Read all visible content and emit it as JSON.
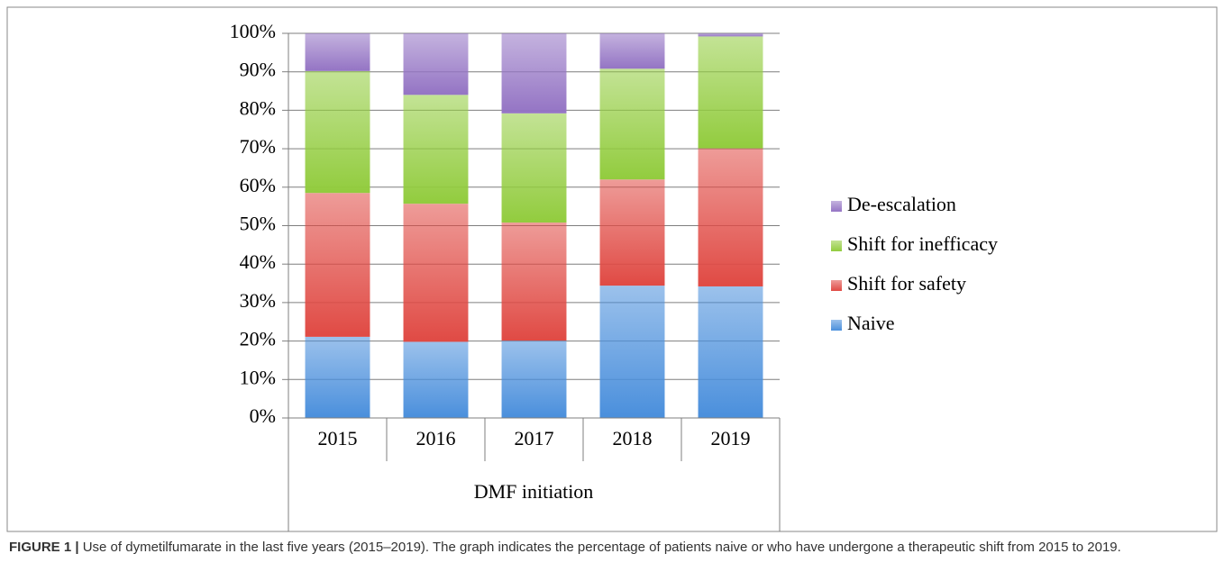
{
  "chart_data": {
    "type": "stacked_bar",
    "xlabel": "DMF initiation",
    "categories": [
      "2015",
      "2016",
      "2017",
      "2018",
      "2019"
    ],
    "series": [
      {
        "name": "Naive",
        "color": "#4a8fdc",
        "values": [
          21.1,
          19.8,
          20.1,
          34.4,
          34.2
        ]
      },
      {
        "name": "Shift for safety",
        "color": "#e04a44",
        "values": [
          37.4,
          35.9,
          30.7,
          27.6,
          35.9
        ]
      },
      {
        "name": "Shift for inefficacy",
        "color": "#92cc3e",
        "values": [
          31.7,
          28.3,
          28.4,
          28.8,
          29.1
        ]
      },
      {
        "name": "De-escalation",
        "color": "#9474c4",
        "values": [
          9.8,
          16.0,
          20.8,
          9.2,
          0.8
        ]
      }
    ],
    "ylim": [
      0,
      100
    ],
    "yticks": [
      {
        "value": 0,
        "label": "0%"
      },
      {
        "value": 10,
        "label": "10%"
      },
      {
        "value": 20,
        "label": "20%"
      },
      {
        "value": 30,
        "label": "30%"
      },
      {
        "value": 40,
        "label": "40%"
      },
      {
        "value": 50,
        "label": "50%"
      },
      {
        "value": 60,
        "label": "60%"
      },
      {
        "value": 70,
        "label": "70%"
      },
      {
        "value": 80,
        "label": "80%"
      },
      {
        "value": 90,
        "label": "90%"
      },
      {
        "value": 100,
        "label": "100%"
      }
    ],
    "grid": true,
    "legend": "right"
  },
  "figure": {
    "label": "FIGURE 1 |",
    "caption": "Use of dymetilfumarate in the last five years (2015–2019). The graph indicates the percentage of patients naive or who have undergone a therapeutic shift from 2015 to 2019."
  }
}
